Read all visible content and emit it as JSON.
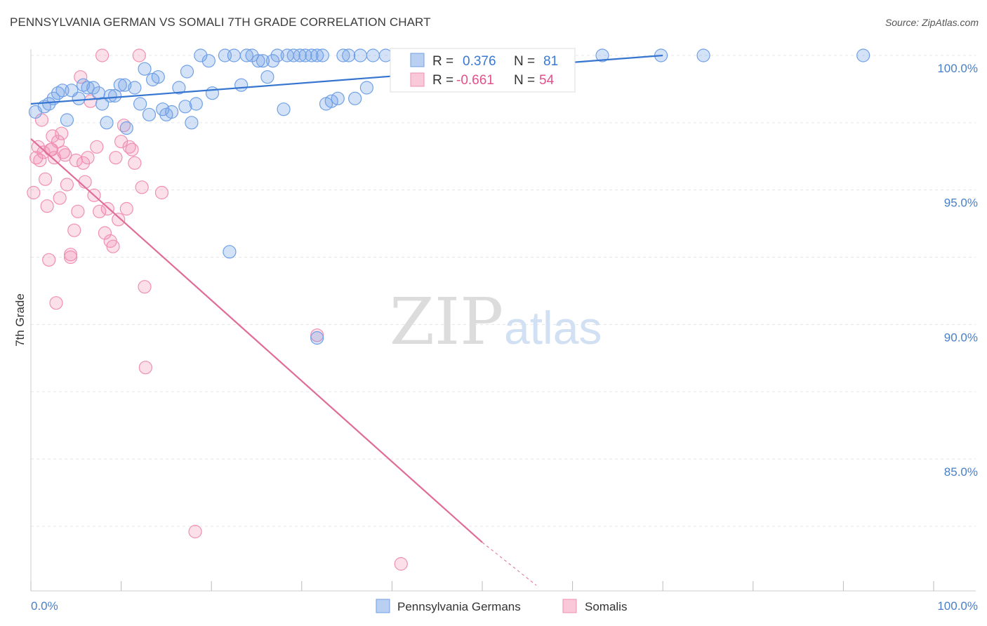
{
  "title": "PENNSYLVANIA GERMAN VS SOMALI 7TH GRADE CORRELATION CHART",
  "source": "Source: ZipAtlas.com",
  "watermark": {
    "zip": "ZIP",
    "atlas": "atlas"
  },
  "colors": {
    "blue": "#6fa0e6",
    "pink": "#f08fb2",
    "blue_line": "#3575d0",
    "pink_line": "#e06c98",
    "tick": "#4a7fc9"
  },
  "stats": {
    "r_label": "R =",
    "n_label": "N =",
    "blue_r": "0.376",
    "blue_n": "81",
    "pink_r": "-0.661",
    "pink_n": "54"
  },
  "chart_data": {
    "type": "scatter",
    "title": "PENNSYLVANIA GERMAN VS SOMALI 7TH GRADE CORRELATION CHART",
    "xlabel": "",
    "ylabel": "7th Grade",
    "xlim": [
      0,
      100
    ],
    "ylim": [
      80.3,
      100.3
    ],
    "x_tick_labels": [
      {
        "value": 0,
        "label": "0.0%"
      },
      {
        "value": 100,
        "label": "100.0%"
      }
    ],
    "y_tick_labels": [
      {
        "value": 100,
        "label": "100.0%"
      },
      {
        "value": 95,
        "label": "95.0%"
      },
      {
        "value": 90,
        "label": "90.0%"
      },
      {
        "value": 85,
        "label": "85.0%"
      }
    ],
    "x_minor_ticks": [
      0,
      10,
      20,
      30,
      40,
      50,
      60,
      70,
      80,
      90,
      100
    ],
    "legend": [
      "Pennsylvania Germans",
      "Somalis"
    ],
    "series": [
      {
        "name": "Pennsylvania Germans",
        "color": "#6fa0e6",
        "trend": {
          "x": [
            0,
            70
          ],
          "y": [
            98.2,
            100.0
          ]
        },
        "points": [
          [
            0.5,
            97.9
          ],
          [
            1.5,
            98.1
          ],
          [
            2.0,
            98.2
          ],
          [
            2.5,
            98.4
          ],
          [
            3.0,
            98.6
          ],
          [
            3.5,
            98.7
          ],
          [
            4.0,
            97.6
          ],
          [
            4.5,
            98.7
          ],
          [
            5.3,
            98.4
          ],
          [
            5.8,
            98.9
          ],
          [
            6.3,
            98.8
          ],
          [
            6.9,
            98.8
          ],
          [
            7.5,
            98.6
          ],
          [
            7.9,
            98.2
          ],
          [
            8.4,
            97.5
          ],
          [
            8.8,
            98.5
          ],
          [
            9.3,
            98.5
          ],
          [
            9.9,
            98.9
          ],
          [
            10.4,
            98.9
          ],
          [
            10.6,
            97.3
          ],
          [
            11.5,
            98.8
          ],
          [
            12.1,
            98.2
          ],
          [
            12.6,
            99.5
          ],
          [
            13.1,
            97.8
          ],
          [
            13.5,
            99.1
          ],
          [
            14.1,
            99.2
          ],
          [
            14.6,
            98.0
          ],
          [
            15.0,
            97.8
          ],
          [
            15.6,
            97.9
          ],
          [
            16.4,
            98.8
          ],
          [
            17.1,
            98.1
          ],
          [
            17.3,
            99.4
          ],
          [
            17.8,
            97.5
          ],
          [
            18.3,
            98.2
          ],
          [
            18.8,
            100.0
          ],
          [
            19.7,
            99.8
          ],
          [
            20.1,
            98.6
          ],
          [
            21.5,
            100.0
          ],
          [
            22.0,
            92.7
          ],
          [
            22.5,
            100.0
          ],
          [
            23.3,
            98.9
          ],
          [
            23.9,
            100.0
          ],
          [
            24.5,
            100.0
          ],
          [
            25.2,
            99.8
          ],
          [
            25.7,
            99.8
          ],
          [
            26.2,
            99.2
          ],
          [
            26.8,
            99.8
          ],
          [
            27.3,
            100.0
          ],
          [
            28.0,
            98.0
          ],
          [
            28.4,
            100.0
          ],
          [
            29.1,
            100.0
          ],
          [
            29.8,
            100.0
          ],
          [
            30.4,
            100.0
          ],
          [
            31.1,
            100.0
          ],
          [
            31.7,
            100.0
          ],
          [
            32.3,
            100.0
          ],
          [
            32.7,
            98.2
          ],
          [
            33.3,
            98.3
          ],
          [
            34.0,
            98.4
          ],
          [
            34.6,
            100.0
          ],
          [
            31.7,
            89.5
          ],
          [
            35.2,
            100.0
          ],
          [
            35.9,
            98.4
          ],
          [
            36.5,
            100.0
          ],
          [
            37.2,
            98.8
          ],
          [
            37.9,
            100.0
          ],
          [
            39.3,
            100.0
          ],
          [
            41.0,
            100.0
          ],
          [
            42.7,
            100.0
          ],
          [
            44.5,
            100.0
          ],
          [
            46.2,
            100.0
          ],
          [
            47.9,
            100.0
          ],
          [
            49.7,
            100.0
          ],
          [
            51.4,
            100.0
          ],
          [
            54.0,
            100.0
          ],
          [
            56.5,
            100.0
          ],
          [
            58.7,
            100.0
          ],
          [
            63.3,
            100.0
          ],
          [
            69.8,
            100.0
          ],
          [
            74.5,
            100.0
          ],
          [
            92.2,
            100.0
          ]
        ]
      },
      {
        "name": "Somalis",
        "color": "#f08fb2",
        "trend": {
          "x": [
            0,
            50
          ],
          "y": [
            96.9,
            81.9
          ]
        },
        "trend_extension": {
          "x": [
            50,
            56
          ],
          "y": [
            81.9,
            80.3
          ]
        },
        "points": [
          [
            0.3,
            94.9
          ],
          [
            0.6,
            96.2
          ],
          [
            0.8,
            96.6
          ],
          [
            1.0,
            96.1
          ],
          [
            1.2,
            97.6
          ],
          [
            1.4,
            96.4
          ],
          [
            1.6,
            95.4
          ],
          [
            1.8,
            94.4
          ],
          [
            2.0,
            92.4
          ],
          [
            2.2,
            96.5
          ],
          [
            2.4,
            97.0
          ],
          [
            2.6,
            96.2
          ],
          [
            2.8,
            90.8
          ],
          [
            3.0,
            96.8
          ],
          [
            3.2,
            94.7
          ],
          [
            3.4,
            97.1
          ],
          [
            3.6,
            96.4
          ],
          [
            3.8,
            96.3
          ],
          [
            4.0,
            95.2
          ],
          [
            4.4,
            92.6
          ],
          [
            4.8,
            93.5
          ],
          [
            5.0,
            96.1
          ],
          [
            5.2,
            94.2
          ],
          [
            5.5,
            99.2
          ],
          [
            5.8,
            96.0
          ],
          [
            6.0,
            95.3
          ],
          [
            6.3,
            96.2
          ],
          [
            6.6,
            98.3
          ],
          [
            7.0,
            94.8
          ],
          [
            7.3,
            96.6
          ],
          [
            7.6,
            94.2
          ],
          [
            7.9,
            100.0
          ],
          [
            8.2,
            93.4
          ],
          [
            8.5,
            94.3
          ],
          [
            8.8,
            93.1
          ],
          [
            9.1,
            92.9
          ],
          [
            9.4,
            96.2
          ],
          [
            9.7,
            93.9
          ],
          [
            10.0,
            96.8
          ],
          [
            10.3,
            97.4
          ],
          [
            10.6,
            94.3
          ],
          [
            10.9,
            96.6
          ],
          [
            11.2,
            96.5
          ],
          [
            11.5,
            96.0
          ],
          [
            12.0,
            100.0
          ],
          [
            12.3,
            95.1
          ],
          [
            12.6,
            91.4
          ],
          [
            12.7,
            88.4
          ],
          [
            14.5,
            94.9
          ],
          [
            18.2,
            82.3
          ],
          [
            31.7,
            89.6
          ],
          [
            41.0,
            81.1
          ],
          [
            4.4,
            92.5
          ],
          [
            2.3,
            96.5
          ]
        ]
      }
    ]
  }
}
